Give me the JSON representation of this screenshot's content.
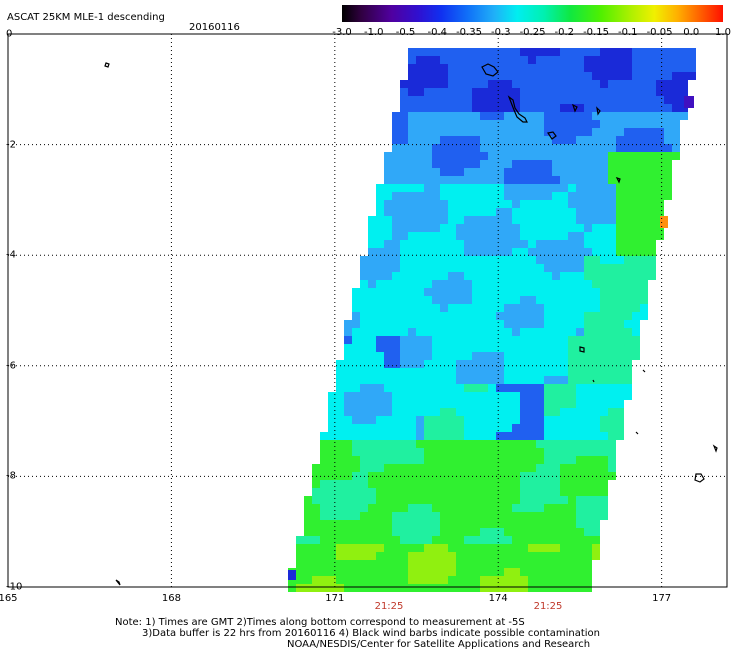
{
  "header": {
    "title": "ASCAT 25KM MLE-1 descending",
    "date": "20160116"
  },
  "colorbar": {
    "labels": [
      "-3.0",
      "-1.0",
      "-0.5",
      "-0.4",
      "-0.35",
      "-0.3",
      "-0.25",
      "-0.2",
      "-0.15",
      "-0.1",
      "-0.05",
      "0.0",
      "1.0"
    ],
    "colors": [
      "#000000",
      "#3a0060",
      "#5a00b0",
      "#2020d8",
      "#1060f0",
      "#20a0f8",
      "#00e8f0",
      "#00f0a0",
      "#10e010",
      "#80f000",
      "#f0f000",
      "#ff9000",
      "#ff1800"
    ]
  },
  "axes": {
    "x_ticks": [
      "165",
      "168",
      "171",
      "174",
      "177"
    ],
    "y_ticks": [
      "0",
      "-2",
      "-4",
      "-6",
      "-8",
      "-10"
    ],
    "x_range": [
      165,
      178.2
    ],
    "y_range": [
      -10,
      0
    ]
  },
  "times": [
    "21:25",
    "21:25"
  ],
  "notes": {
    "line1": "Note: 1) Times are GMT 2)Times along bottom correspond to measurement at -5S",
    "line2": "3)Data buffer is 22 hrs from 20160116 4) Black wind barbs indicate possible contamination",
    "line3": "NOAA/NESDIS/Center for Satellite Applications and Research"
  },
  "swath_colors": {
    "deep_blue": "#1a2ad8",
    "blue": "#2060f0",
    "light_blue": "#30a8f8",
    "cyan": "#00f0f0",
    "aqua_green": "#20f0a0",
    "green": "#30f030",
    "yellow_green": "#90f010",
    "orange": "#ff9010"
  }
}
